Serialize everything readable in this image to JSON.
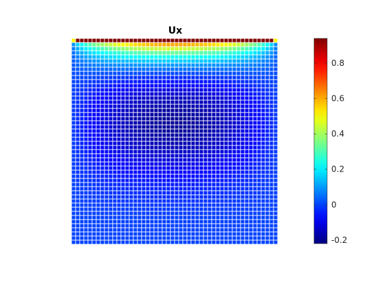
{
  "chart_data": {
    "type": "heatmap",
    "title": "Ux",
    "xlabel": "",
    "ylabel": "",
    "grid": {
      "rows": 50,
      "cols": 50,
      "cell_edges": "white"
    },
    "colormap": "jet",
    "clim": [
      -0.22,
      0.94
    ],
    "colorbar": {
      "location": "right",
      "ticks": [
        -0.2,
        0,
        0.2,
        0.4,
        0.6,
        0.8
      ],
      "tick_labels": [
        "-0.2",
        "0",
        "0.2",
        "0.4",
        "0.6",
        "0.8"
      ]
    },
    "field_description": {
      "top_row_value": 0.94,
      "boundary_value": 0.0,
      "min_value": -0.2,
      "min_location_fraction_from_top": 0.4
    }
  }
}
